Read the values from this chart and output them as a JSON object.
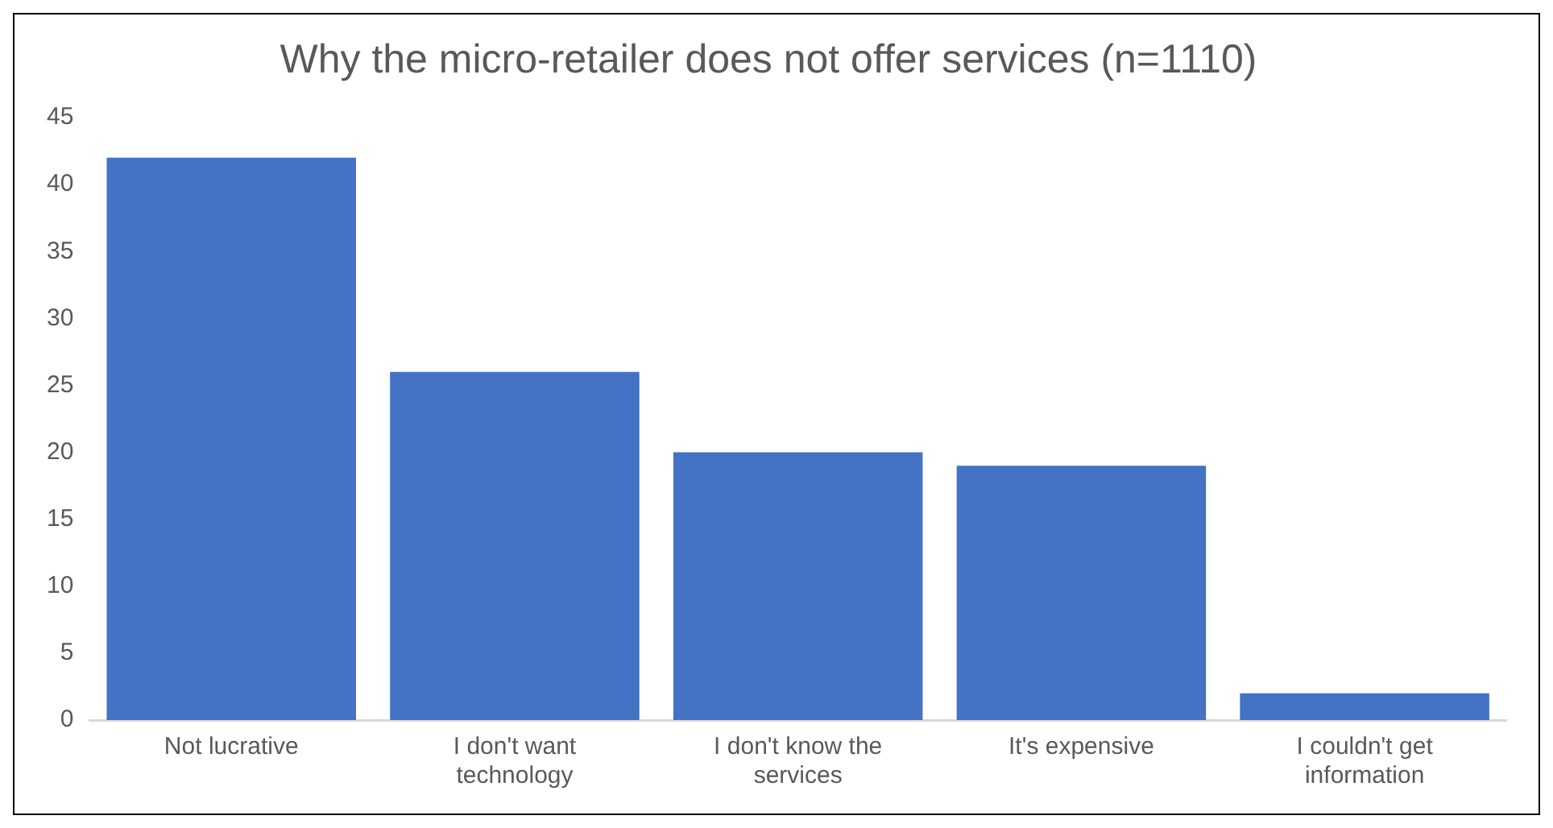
{
  "chart_data": {
    "type": "bar",
    "title": "Why the micro-retailer does not offer services (n=1110)",
    "categories": [
      "Not lucrative",
      "I don't want technology",
      "I don't know the services",
      "It's expensive",
      "I couldn't get information"
    ],
    "values": [
      42,
      26,
      20,
      19,
      2
    ],
    "color": "#4472c4",
    "ylim": [
      0,
      45
    ],
    "yticks": [
      0,
      5,
      10,
      15,
      20,
      25,
      30,
      35,
      40,
      45
    ],
    "grid": false,
    "legend": false
  }
}
